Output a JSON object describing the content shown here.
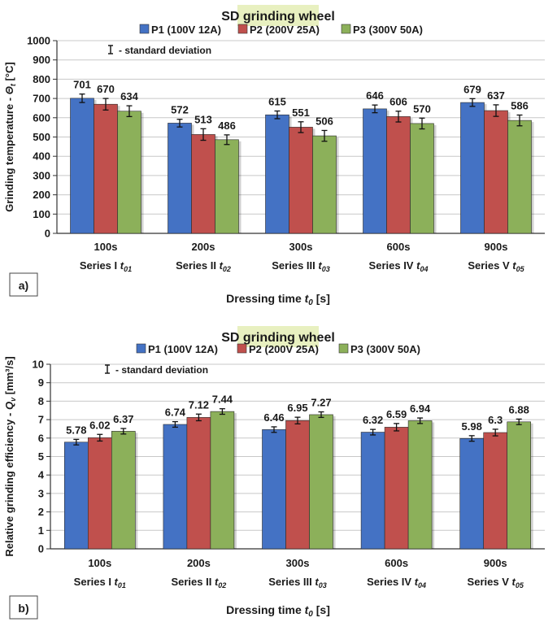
{
  "chart_data": [
    {
      "panel_label": "a)",
      "type": "bar",
      "title": "SD grinding wheel",
      "ylabel_prefix": "Grinding temperature - ",
      "ylabel_symbol": "Θ",
      "ylabel_sub": "t",
      "ylabel_unit": " [°C]",
      "xlabel_prefix": "Dressing time ",
      "xlabel_symbol": "t",
      "xlabel_sub": "0",
      "xlabel_unit": " [s]",
      "ylim": [
        0,
        1000
      ],
      "yticks": [
        "0",
        "100",
        "200",
        "300",
        "400",
        "500",
        "600",
        "700",
        "800",
        "900",
        "1000"
      ],
      "grid": true,
      "legend_position": "top",
      "categories": [
        "100s",
        "200s",
        "300s",
        "600s",
        "900s"
      ],
      "series_labels": [
        {
          "name": "Series I",
          "sym": "t",
          "sub": "01"
        },
        {
          "name": "Series II",
          "sym": "t",
          "sub": "02"
        },
        {
          "name": "Series III",
          "sym": "t",
          "sub": "03"
        },
        {
          "name": "Series IV",
          "sym": "t",
          "sub": "04"
        },
        {
          "name": "Series V",
          "sym": "t",
          "sub": "05"
        }
      ],
      "error_note": "- standard deviation",
      "series": [
        {
          "name": "P1 (100V 12A)",
          "color": "#4472c4",
          "values": [
            701,
            572,
            615,
            646,
            679
          ],
          "labels": [
            "701",
            "572",
            "615",
            "646",
            "679"
          ],
          "errors": [
            22,
            20,
            20,
            20,
            20
          ]
        },
        {
          "name": "P2 (200V 25A)",
          "color": "#c0504d",
          "values": [
            670,
            513,
            551,
            606,
            637
          ],
          "labels": [
            "670",
            "513",
            "551",
            "606",
            "637"
          ],
          "errors": [
            30,
            30,
            28,
            28,
            30
          ]
        },
        {
          "name": "P3 (300V 50A)",
          "color": "#8cb05a",
          "values": [
            634,
            486,
            506,
            570,
            586
          ],
          "labels": [
            "634",
            "486",
            "506",
            "570",
            "586"
          ],
          "errors": [
            28,
            25,
            28,
            28,
            28
          ]
        }
      ]
    },
    {
      "panel_label": "b)",
      "type": "bar",
      "title": "SD grinding wheel",
      "ylabel_prefix": "Relative grinding efficiency - ",
      "ylabel_symbol": "Q",
      "ylabel_sub": "v",
      "ylabel_unit": " [mm³/s]",
      "xlabel_prefix": "Dressing time ",
      "xlabel_symbol": "t",
      "xlabel_sub": "0",
      "xlabel_unit": " [s]",
      "ylim": [
        0,
        10
      ],
      "yticks": [
        "0",
        "1",
        "2",
        "3",
        "4",
        "5",
        "6",
        "7",
        "8",
        "9",
        "10"
      ],
      "grid": true,
      "legend_position": "top",
      "categories": [
        "100s",
        "200s",
        "300s",
        "600s",
        "900s"
      ],
      "series_labels": [
        {
          "name": "Series I",
          "sym": "t",
          "sub": "01"
        },
        {
          "name": "Series II",
          "sym": "t",
          "sub": "02"
        },
        {
          "name": "Series III",
          "sym": "t",
          "sub": "03"
        },
        {
          "name": "Series IV",
          "sym": "t",
          "sub": "04"
        },
        {
          "name": "Series V",
          "sym": "t",
          "sub": "05"
        }
      ],
      "error_note": "- standard deviation",
      "series": [
        {
          "name": "P1 (100V 12A)",
          "color": "#4472c4",
          "values": [
            5.78,
            6.74,
            6.46,
            6.32,
            5.98
          ],
          "labels": [
            "5.78",
            "6.74",
            "6.46",
            "6.32",
            "5.98"
          ],
          "errors": [
            0.15,
            0.15,
            0.15,
            0.15,
            0.15
          ]
        },
        {
          "name": "P2 (200V 25A)",
          "color": "#c0504d",
          "values": [
            6.02,
            7.12,
            6.95,
            6.59,
            6.3
          ],
          "labels": [
            "6.02",
            "7.12",
            "6.95",
            "6.59",
            "6.3"
          ],
          "errors": [
            0.18,
            0.18,
            0.18,
            0.2,
            0.18
          ]
        },
        {
          "name": "P3 (300V 50A)",
          "color": "#8cb05a",
          "values": [
            6.37,
            7.44,
            7.27,
            6.94,
            6.88
          ],
          "labels": [
            "6.37",
            "7.44",
            "7.27",
            "6.94",
            "6.88"
          ],
          "errors": [
            0.15,
            0.15,
            0.15,
            0.15,
            0.15
          ]
        }
      ]
    }
  ]
}
